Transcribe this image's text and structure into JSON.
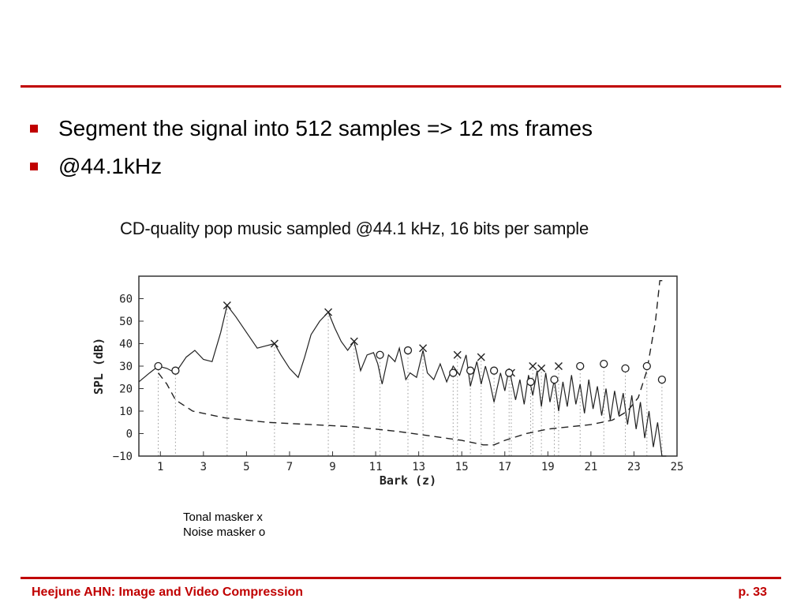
{
  "slide": {
    "accent_color": "#c00000",
    "bullets": [
      "Segment the signal into 512 samples => 12 ms frames",
      "@44.1kHz"
    ],
    "figure_title": "CD-quality pop music sampled @44.1 kHz, 16 bits per sample",
    "legend": [
      "Tonal masker x",
      "Noise masker o"
    ],
    "footer_left": "Heejune AHN: Image and Video Compression",
    "footer_right": "p. 33"
  },
  "chart_data": {
    "type": "line",
    "xlabel": "Bark (z)",
    "ylabel": "SPL (dB)",
    "xlim": [
      0,
      25
    ],
    "ylim": [
      -10,
      70
    ],
    "x_ticks": [
      1,
      3,
      5,
      7,
      9,
      11,
      13,
      15,
      17,
      19,
      21,
      23,
      25
    ],
    "y_ticks": [
      -10,
      0,
      10,
      20,
      30,
      40,
      50,
      60
    ],
    "series": [
      {
        "style": "solid",
        "x": [
          0,
          0.5,
          0.9,
          1.3,
          1.7,
          2.2,
          2.6,
          3,
          3.4,
          3.8,
          4.1,
          4.5,
          5,
          5.5,
          5.9,
          6.3,
          6.6,
          7,
          7.4,
          7.7,
          8,
          8.4,
          8.8,
          9.1,
          9.4,
          9.7,
          10,
          10.3,
          10.6,
          10.9,
          11.1,
          11.3,
          11.6,
          11.9,
          12.1,
          12.4,
          12.6,
          12.9,
          13.2,
          13.4,
          13.7,
          14,
          14.3,
          14.6,
          14.9,
          15.2,
          15.4,
          15.7,
          15.9,
          16.1,
          16.3,
          16.5,
          16.8,
          17,
          17.2,
          17.5,
          17.7,
          17.9,
          18.1,
          18.3,
          18.5,
          18.7,
          18.9,
          19.1,
          19.3,
          19.5,
          19.7,
          19.9,
          20.1,
          20.3,
          20.5,
          20.7,
          20.9,
          21.1,
          21.3,
          21.5,
          21.7,
          21.9,
          22.1,
          22.3,
          22.5,
          22.7,
          22.9,
          23.1,
          23.3,
          23.5,
          23.7,
          23.9,
          24.1,
          24.3,
          24.5
        ],
        "y": [
          23,
          27,
          30,
          29,
          27,
          34,
          37,
          33,
          32,
          45,
          57,
          52,
          45,
          38,
          39,
          40,
          35,
          29,
          25,
          34,
          44,
          50,
          54,
          47,
          41,
          37,
          41,
          28,
          35,
          36,
          31,
          22,
          35,
          32,
          38,
          24,
          27,
          25,
          37,
          27,
          24,
          31,
          23,
          30,
          26,
          35,
          21,
          32,
          22,
          30,
          23,
          14,
          27,
          19,
          29,
          15,
          24,
          13,
          26,
          17,
          28,
          12,
          27,
          14,
          24,
          10,
          23,
          12,
          26,
          13,
          22,
          9,
          24,
          11,
          21,
          8,
          20,
          6,
          19,
          8,
          18,
          4,
          17,
          2,
          14,
          -2,
          10,
          -6,
          5,
          -10,
          -10
        ]
      },
      {
        "style": "dashed",
        "x": [
          0.9,
          1.3,
          1.7,
          2.5,
          4,
          6,
          8,
          10,
          12,
          13.5,
          15,
          16,
          16.5,
          17,
          18,
          19,
          20,
          21,
          22,
          22.7,
          23.2,
          23.6,
          24,
          24.2,
          24.5
        ],
        "y": [
          27,
          22,
          15,
          10,
          7,
          5,
          4,
          3,
          1,
          -1,
          -3,
          -5,
          -5,
          -3,
          0,
          2,
          3,
          4,
          6,
          10,
          16,
          28,
          50,
          68,
          68
        ]
      }
    ],
    "tonal_maskers": [
      {
        "x": 4.1,
        "y": 57
      },
      {
        "x": 6.3,
        "y": 40
      },
      {
        "x": 8.8,
        "y": 54
      },
      {
        "x": 10,
        "y": 41
      },
      {
        "x": 13.2,
        "y": 38
      },
      {
        "x": 14.8,
        "y": 35
      },
      {
        "x": 15.9,
        "y": 34
      },
      {
        "x": 17.3,
        "y": 27
      },
      {
        "x": 18.3,
        "y": 30
      },
      {
        "x": 18.7,
        "y": 29
      },
      {
        "x": 19.5,
        "y": 30
      }
    ],
    "noise_maskers": [
      {
        "x": 0.9,
        "y": 30
      },
      {
        "x": 1.7,
        "y": 28
      },
      {
        "x": 11.2,
        "y": 35
      },
      {
        "x": 12.5,
        "y": 37
      },
      {
        "x": 14.6,
        "y": 27
      },
      {
        "x": 15.4,
        "y": 28
      },
      {
        "x": 16.5,
        "y": 28
      },
      {
        "x": 17.2,
        "y": 27
      },
      {
        "x": 18.2,
        "y": 23
      },
      {
        "x": 19.3,
        "y": 24
      },
      {
        "x": 20.5,
        "y": 30
      },
      {
        "x": 21.6,
        "y": 31
      },
      {
        "x": 22.6,
        "y": 29
      },
      {
        "x": 23.6,
        "y": 30
      },
      {
        "x": 24.3,
        "y": 24
      }
    ]
  }
}
